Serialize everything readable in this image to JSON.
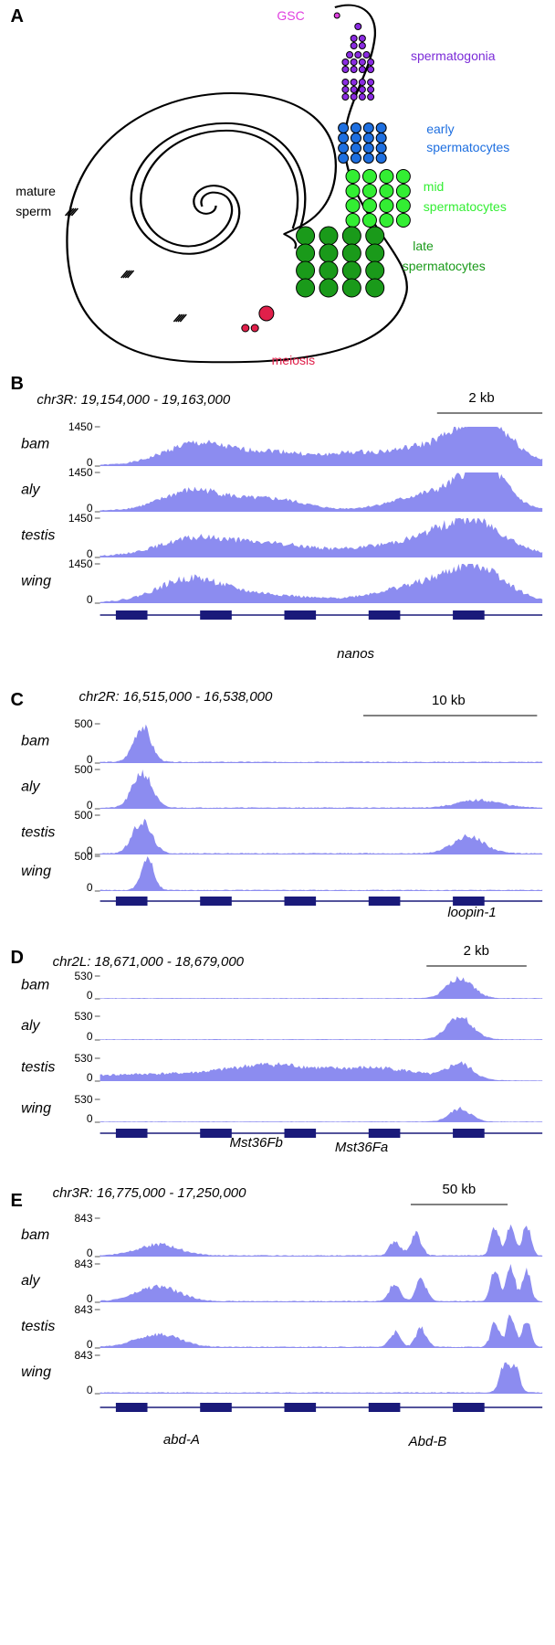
{
  "panel_a": {
    "label": "A",
    "gsc": "GSC",
    "spermatogonia": "spermatogonia",
    "early": [
      "early",
      "spermatocytes"
    ],
    "mid": [
      "mid",
      "spermatocytes"
    ],
    "late": [
      "late",
      "spermatocytes"
    ],
    "mature": [
      "mature",
      "sperm"
    ],
    "meiosis": "meiosis"
  },
  "panels": [
    {
      "label": "B",
      "region": "chr3R: 19,154,000 - 19,163,000",
      "scale": "2 kb",
      "tracks": [
        {
          "name": "bam",
          "max": 1450,
          "min": 0
        },
        {
          "name": "aly",
          "max": 1450,
          "min": 0
        },
        {
          "name": "testis",
          "max": 1450,
          "min": 0
        },
        {
          "name": "wing",
          "max": 1450,
          "min": 0
        }
      ],
      "genes": [
        "nanos"
      ]
    },
    {
      "label": "C",
      "region": "chr2R: 16,515,000 - 16,538,000",
      "scale": "10 kb",
      "tracks": [
        {
          "name": "bam",
          "max": 500,
          "min": 0
        },
        {
          "name": "aly",
          "max": 500,
          "min": 0
        },
        {
          "name": "testis",
          "max": 500,
          "min": 0
        },
        {
          "name": "wing",
          "max": 500,
          "min": 0
        }
      ],
      "genes": [
        "loopin-1"
      ]
    },
    {
      "label": "D",
      "region": "chr2L: 18,671,000 - 18,679,000",
      "scale": "2 kb",
      "tracks": [
        {
          "name": "bam",
          "max": 530,
          "min": 0
        },
        {
          "name": "aly",
          "max": 530,
          "min": 0
        },
        {
          "name": "testis",
          "max": 530,
          "min": 0
        },
        {
          "name": "wing",
          "max": 530,
          "min": 0
        }
      ],
      "genes": [
        "Mst36Fb",
        "Mst36Fa"
      ]
    },
    {
      "label": "E",
      "region": "chr3R: 16,775,000 - 17,250,000",
      "scale": "50 kb",
      "tracks": [
        {
          "name": "bam",
          "max": 843,
          "min": 0
        },
        {
          "name": "aly",
          "max": 843,
          "min": 0
        },
        {
          "name": "testis",
          "max": 843,
          "min": 0
        },
        {
          "name": "wing",
          "max": 843,
          "min": 0
        }
      ],
      "genes": [
        "abd-A",
        "Abd-B"
      ]
    }
  ]
}
